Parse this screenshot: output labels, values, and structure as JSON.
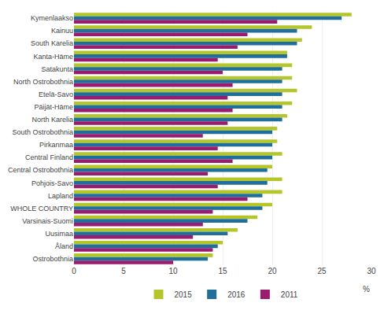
{
  "chart_data": {
    "type": "bar",
    "orientation": "horizontal",
    "categories": [
      "Kymenlaakso",
      "Kainuu",
      "South Karelia",
      "Kanta-Häme",
      "Satakunta",
      "North Ostrobothnia",
      "Etelä-Savo",
      "Päijät-Häme",
      "North Karelia",
      "South Ostrobothnia",
      "Pirkanmaa",
      "Central Finland",
      "Central Ostrobothnia",
      "Pohjois-Savo",
      "Lapland",
      "WHOLE COUNTRY",
      "Varsinais-Suomi",
      "Uusimaa",
      "Åland",
      "Ostrobothnia"
    ],
    "series": [
      {
        "name": "2015",
        "color": "#b5c62b",
        "values": [
          28.0,
          24.0,
          23.0,
          21.5,
          22.0,
          22.0,
          22.5,
          22.0,
          21.5,
          20.5,
          20.5,
          21.0,
          20.0,
          21.0,
          21.0,
          20.0,
          18.5,
          16.5,
          15.0,
          14.0
        ]
      },
      {
        "name": "2016",
        "color": "#1f6e9c",
        "values": [
          27.0,
          22.5,
          22.5,
          21.5,
          21.0,
          21.0,
          21.0,
          21.0,
          21.0,
          20.0,
          20.0,
          20.0,
          19.5,
          19.5,
          19.0,
          19.0,
          17.5,
          15.5,
          14.5,
          13.5
        ]
      },
      {
        "name": "2011",
        "color": "#9b1b6e",
        "values": [
          20.5,
          17.5,
          16.5,
          14.5,
          15.0,
          16.0,
          15.5,
          16.0,
          15.5,
          13.0,
          14.5,
          16.0,
          13.5,
          14.5,
          17.5,
          14.0,
          13.0,
          12.0,
          14.0,
          10.0
        ]
      }
    ],
    "xlabel": "%",
    "xlim": [
      0,
      30
    ],
    "xticks": [
      0,
      5,
      10,
      15,
      20,
      25,
      30
    ],
    "grid": true,
    "legend": "bottom"
  }
}
